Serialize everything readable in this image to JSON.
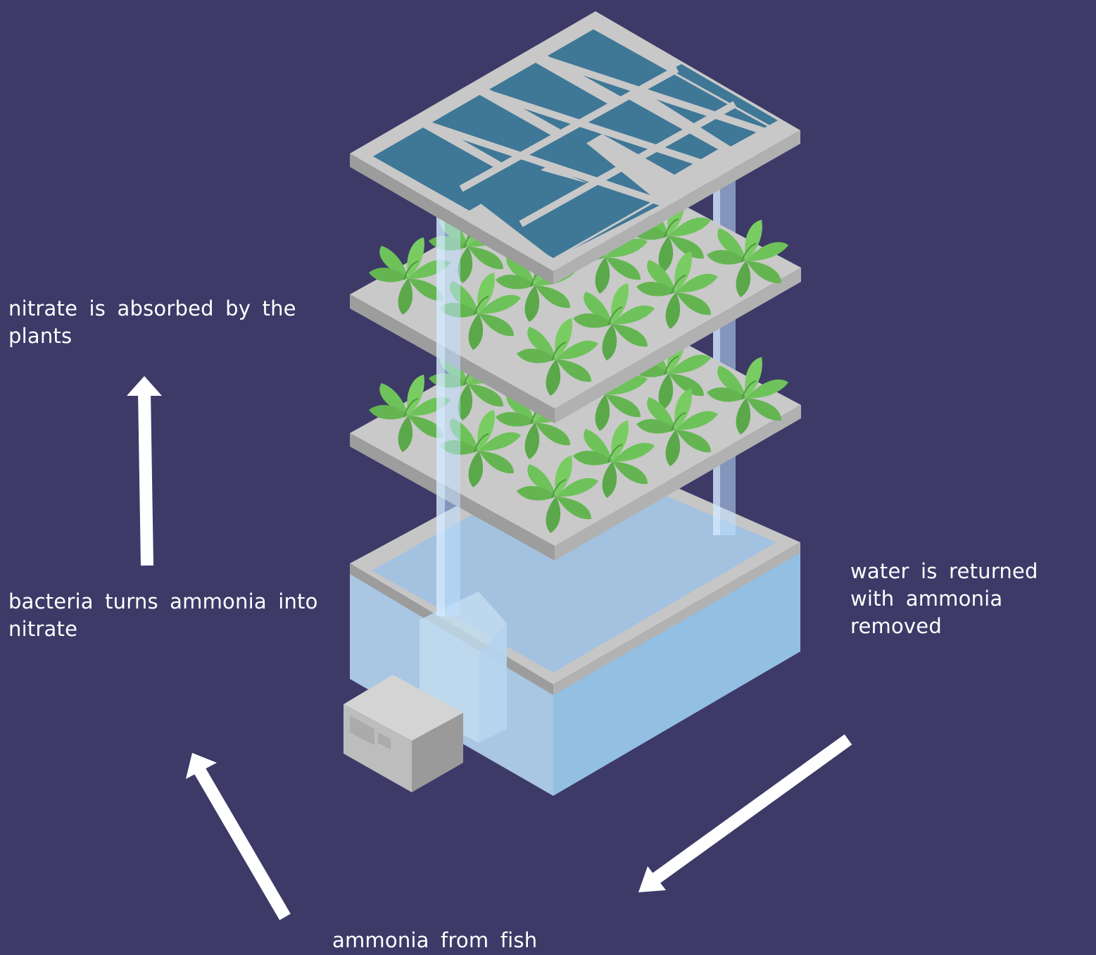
{
  "labels": {
    "plants": "nitrate is absorbed by the\nplants",
    "bacteria": "bacteria turns ammonia into\nnitrate",
    "water": "water is returned\nwith ammonia removed",
    "fish": "ammonia from fish"
  },
  "colors": {
    "background": "#3d3a68",
    "frame": "#c8c8c8",
    "solar_cell": "#3f7797",
    "leaf": "#6ec25a",
    "water": "#a7c9e6",
    "pipe": "#bfe0ff",
    "arrow": "#ffffff"
  }
}
